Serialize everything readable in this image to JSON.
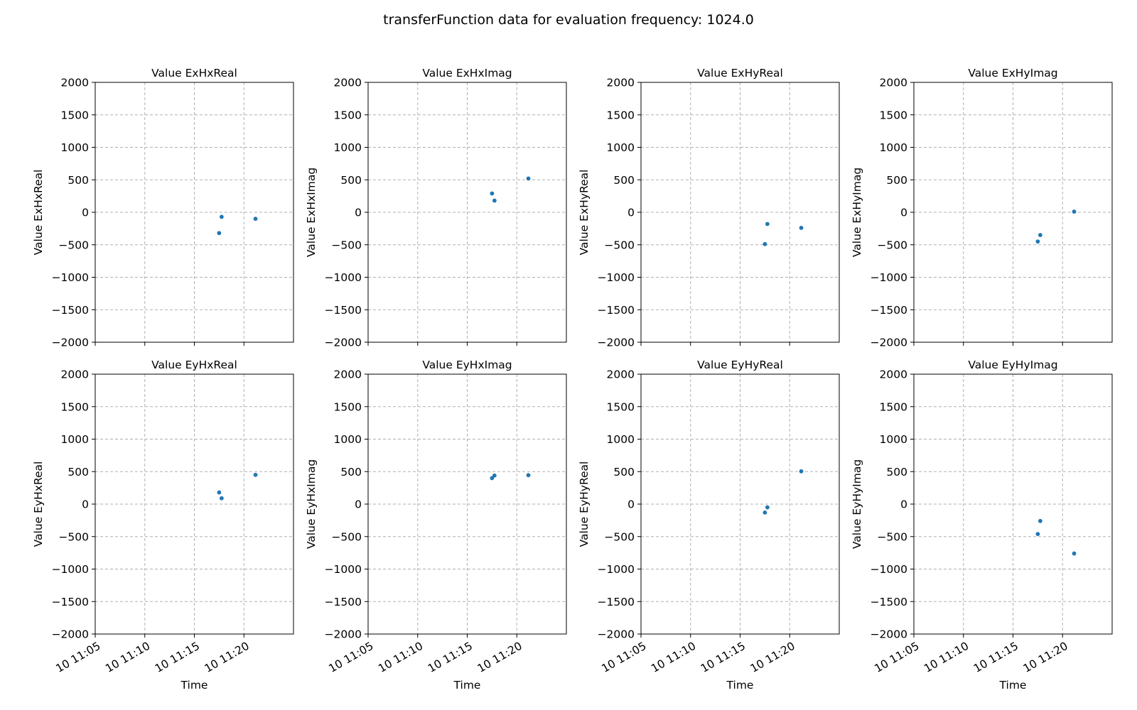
{
  "figure": {
    "suptitle": "transferFunction data for evaluation frequency: 1024.0"
  },
  "chart_data": [
    {
      "type": "scatter",
      "title": "Value ExHxReal",
      "xlabel": "",
      "ylabel": "Value ExHxReal",
      "ylim": [
        -2000,
        2000
      ],
      "yticks": [
        -2000,
        -1500,
        -1000,
        -500,
        0,
        500,
        1000,
        1500,
        2000
      ],
      "xlim": [
        "11:05",
        "11:25"
      ],
      "xticks": [
        "10 11:05",
        "10 11:10",
        "10 11:15",
        "10 11:20"
      ],
      "grid": true,
      "points": [
        {
          "x": "11:17:30",
          "y": -320
        },
        {
          "x": "11:17:45",
          "y": -70
        },
        {
          "x": "11:21:10",
          "y": -100
        }
      ]
    },
    {
      "type": "scatter",
      "title": "Value ExHxImag",
      "xlabel": "",
      "ylabel": "Value ExHxImag",
      "ylim": [
        -2000,
        2000
      ],
      "yticks": [
        -2000,
        -1500,
        -1000,
        -500,
        0,
        500,
        1000,
        1500,
        2000
      ],
      "xlim": [
        "11:05",
        "11:25"
      ],
      "xticks": [
        "10 11:05",
        "10 11:10",
        "10 11:15",
        "10 11:20"
      ],
      "grid": true,
      "points": [
        {
          "x": "11:17:30",
          "y": 290
        },
        {
          "x": "11:17:45",
          "y": 180
        },
        {
          "x": "11:21:10",
          "y": 520
        }
      ]
    },
    {
      "type": "scatter",
      "title": "Value ExHyReal",
      "xlabel": "",
      "ylabel": "Value ExHyReal",
      "ylim": [
        -2000,
        2000
      ],
      "yticks": [
        -2000,
        -1500,
        -1000,
        -500,
        0,
        500,
        1000,
        1500,
        2000
      ],
      "xlim": [
        "11:05",
        "11:25"
      ],
      "xticks": [
        "10 11:05",
        "10 11:10",
        "10 11:15",
        "10 11:20"
      ],
      "grid": true,
      "points": [
        {
          "x": "11:17:30",
          "y": -490
        },
        {
          "x": "11:17:45",
          "y": -180
        },
        {
          "x": "11:21:10",
          "y": -240
        }
      ]
    },
    {
      "type": "scatter",
      "title": "Value ExHyImag",
      "xlabel": "",
      "ylabel": "Value ExHyImag",
      "ylim": [
        -2000,
        2000
      ],
      "yticks": [
        -2000,
        -1500,
        -1000,
        -500,
        0,
        500,
        1000,
        1500,
        2000
      ],
      "xlim": [
        "11:05",
        "11:25"
      ],
      "xticks": [
        "10 11:05",
        "10 11:10",
        "10 11:15",
        "10 11:20"
      ],
      "grid": true,
      "points": [
        {
          "x": "11:17:30",
          "y": -450
        },
        {
          "x": "11:17:45",
          "y": -350
        },
        {
          "x": "11:21:10",
          "y": 10
        }
      ]
    },
    {
      "type": "scatter",
      "title": "Value EyHxReal",
      "xlabel": "Time",
      "ylabel": "Value EyHxReal",
      "ylim": [
        -2000,
        2000
      ],
      "yticks": [
        -2000,
        -1500,
        -1000,
        -500,
        0,
        500,
        1000,
        1500,
        2000
      ],
      "xlim": [
        "11:05",
        "11:25"
      ],
      "xticks": [
        "10 11:05",
        "10 11:10",
        "10 11:15",
        "10 11:20"
      ],
      "grid": true,
      "points": [
        {
          "x": "11:17:30",
          "y": 180
        },
        {
          "x": "11:17:45",
          "y": 90
        },
        {
          "x": "11:21:10",
          "y": 450
        }
      ]
    },
    {
      "type": "scatter",
      "title": "Value EyHxImag",
      "xlabel": "Time",
      "ylabel": "Value EyHxImag",
      "ylim": [
        -2000,
        2000
      ],
      "yticks": [
        -2000,
        -1500,
        -1000,
        -500,
        0,
        500,
        1000,
        1500,
        2000
      ],
      "xlim": [
        "11:05",
        "11:25"
      ],
      "xticks": [
        "10 11:05",
        "10 11:10",
        "10 11:15",
        "10 11:20"
      ],
      "grid": true,
      "points": [
        {
          "x": "11:17:30",
          "y": 400
        },
        {
          "x": "11:17:45",
          "y": 440
        },
        {
          "x": "11:21:10",
          "y": 445
        }
      ]
    },
    {
      "type": "scatter",
      "title": "Value EyHyReal",
      "xlabel": "Time",
      "ylabel": "Value EyHyReal",
      "ylim": [
        -2000,
        2000
      ],
      "yticks": [
        -2000,
        -1500,
        -1000,
        -500,
        0,
        500,
        1000,
        1500,
        2000
      ],
      "xlim": [
        "11:05",
        "11:25"
      ],
      "xticks": [
        "10 11:05",
        "10 11:10",
        "10 11:15",
        "10 11:20"
      ],
      "grid": true,
      "points": [
        {
          "x": "11:17:30",
          "y": -130
        },
        {
          "x": "11:17:45",
          "y": -50
        },
        {
          "x": "11:21:10",
          "y": 505
        }
      ]
    },
    {
      "type": "scatter",
      "title": "Value EyHyImag",
      "xlabel": "Time",
      "ylabel": "Value EyHyImag",
      "ylim": [
        -2000,
        2000
      ],
      "yticks": [
        -2000,
        -1500,
        -1000,
        -500,
        0,
        500,
        1000,
        1500,
        2000
      ],
      "xlim": [
        "11:05",
        "11:25"
      ],
      "xticks": [
        "10 11:05",
        "10 11:10",
        "10 11:15",
        "10 11:20"
      ],
      "grid": true,
      "points": [
        {
          "x": "11:17:30",
          "y": -460
        },
        {
          "x": "11:17:45",
          "y": -260
        },
        {
          "x": "11:21:10",
          "y": -760
        }
      ]
    }
  ]
}
